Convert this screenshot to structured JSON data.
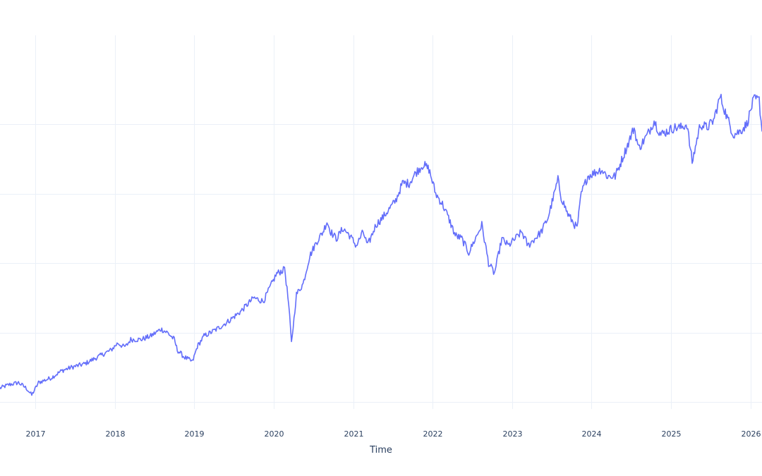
{
  "chart_data": {
    "type": "line",
    "title": "",
    "xlabel": "Time",
    "ylabel": "",
    "x_tick_labels": [
      "2017",
      "2018",
      "2019",
      "2020",
      "2021",
      "2022",
      "2023",
      "2024",
      "2025",
      "2026"
    ],
    "x_range": [
      "2016-07-22",
      "2026-02-23"
    ],
    "y_range": [
      0.0,
      5.38
    ],
    "y_gridlines": [
      0.1,
      1.1,
      2.1,
      3.1,
      4.1
    ],
    "grid": true,
    "legend": "none",
    "color": "#636efa",
    "series": [
      {
        "x": [
          "2016-07-22",
          "2016-09-01",
          "2016-10-15",
          "2016-11-20",
          "2016-12-15",
          "2017-01-15",
          "2017-03-15",
          "2017-05-01",
          "2017-06-15",
          "2017-08-15",
          "2017-10-15",
          "2017-12-15",
          "2018-01-15",
          "2018-02-08",
          "2018-02-20",
          "2018-03-15",
          "2018-05-01",
          "2018-06-15",
          "2018-08-01",
          "2018-08-31",
          "2018-10-01",
          "2018-10-15",
          "2018-11-15",
          "2018-12-24",
          "2019-01-15",
          "2019-02-15",
          "2019-04-15",
          "2019-06-01",
          "2019-08-01",
          "2019-10-01",
          "2019-11-15",
          "2019-12-15",
          "2020-01-15",
          "2020-02-15",
          "2020-02-20",
          "2020-03-10",
          "2020-03-23",
          "2020-04-15",
          "2020-05-15",
          "2020-06-15",
          "2020-07-15",
          "2020-08-15",
          "2020-09-02",
          "2020-09-20",
          "2020-10-15",
          "2020-11-15",
          "2020-12-15",
          "2021-01-15",
          "2021-02-15",
          "2021-03-08",
          "2021-04-15",
          "2021-05-15",
          "2021-07-15",
          "2021-08-15",
          "2021-09-15",
          "2021-10-15",
          "2021-11-19",
          "2021-12-15",
          "2022-01-15",
          "2022-02-15",
          "2022-03-15",
          "2022-04-15",
          "2022-05-15",
          "2022-06-16",
          "2022-08-15",
          "2022-09-15",
          "2022-10-12",
          "2022-11-15",
          "2022-12-15",
          "2023-01-15",
          "2023-02-15",
          "2023-03-15",
          "2023-04-15",
          "2023-05-15",
          "2023-06-15",
          "2023-07-31",
          "2023-08-15",
          "2023-09-15",
          "2023-10-27",
          "2023-11-15",
          "2023-12-15",
          "2024-01-15",
          "2024-02-15",
          "2024-03-15",
          "2024-04-19",
          "2024-05-15",
          "2024-06-15",
          "2024-07-15",
          "2024-08-05",
          "2024-09-15",
          "2024-10-15",
          "2024-11-15",
          "2024-12-15",
          "2025-01-15",
          "2025-02-15",
          "2025-03-15",
          "2025-04-08",
          "2025-05-15",
          "2025-06-15",
          "2025-07-15",
          "2025-08-15",
          "2025-09-15",
          "2025-10-15",
          "2025-11-15",
          "2025-12-15",
          "2026-01-15",
          "2026-02-10",
          "2026-02-23"
        ],
        "y": [
          0.3,
          0.35,
          0.38,
          0.3,
          0.2,
          0.38,
          0.45,
          0.55,
          0.6,
          0.65,
          0.75,
          0.85,
          0.95,
          0.9,
          0.9,
          1.0,
          1.0,
          1.05,
          1.15,
          1.1,
          1.0,
          0.85,
          0.75,
          0.68,
          0.9,
          1.05,
          1.15,
          1.25,
          1.4,
          1.6,
          1.55,
          1.75,
          1.95,
          2.0,
          2.05,
          1.5,
          0.95,
          1.65,
          1.8,
          2.2,
          2.4,
          2.55,
          2.7,
          2.55,
          2.45,
          2.6,
          2.5,
          2.35,
          2.55,
          2.35,
          2.65,
          2.75,
          3.0,
          3.25,
          3.25,
          3.4,
          3.52,
          3.45,
          3.1,
          2.95,
          2.75,
          2.5,
          2.45,
          2.25,
          2.65,
          2.1,
          1.95,
          2.45,
          2.35,
          2.45,
          2.55,
          2.35,
          2.45,
          2.55,
          2.75,
          3.3,
          3.05,
          2.8,
          2.6,
          3.1,
          3.35,
          3.4,
          3.45,
          3.35,
          3.35,
          3.55,
          3.8,
          4.05,
          3.75,
          3.95,
          4.15,
          3.95,
          4.0,
          4.05,
          4.05,
          4.1,
          3.55,
          4.1,
          4.05,
          4.15,
          4.5,
          4.2,
          3.95,
          4.0,
          4.1,
          4.45,
          4.45,
          4.0
        ]
      }
    ]
  }
}
